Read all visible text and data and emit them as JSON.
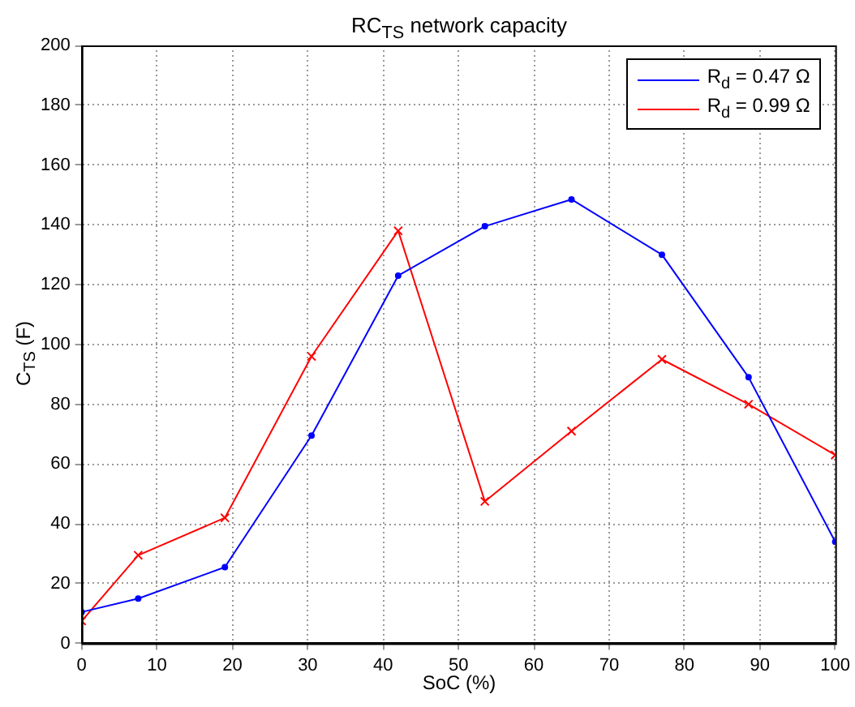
{
  "chart_data": {
    "type": "line",
    "title": "RC$_{TS}$ network capacity",
    "xlabel": "SoC (%)",
    "ylabel": "C$_{TS}$ (F)",
    "x": [
      0,
      7.5,
      19,
      30.5,
      42,
      53.5,
      65,
      77,
      88.5,
      100
    ],
    "xlim": [
      0,
      100
    ],
    "xticks": [
      0,
      10,
      20,
      30,
      40,
      50,
      60,
      70,
      80,
      90,
      100
    ],
    "ylim": [
      0,
      200
    ],
    "yticks": [
      0,
      20,
      40,
      60,
      80,
      100,
      120,
      140,
      160,
      180,
      200
    ],
    "grid": true,
    "legend": "top right",
    "line_style": "solid",
    "series": [
      {
        "name": "R$_{d}$ = 0.47 Ω",
        "color": "#0000ff",
        "marker": "circle",
        "values": [
          10.5,
          15,
          25.5,
          69.5,
          123,
          139.5,
          148.5,
          130,
          89,
          34
        ]
      },
      {
        "name": "R$_{d}$ = 0.99 Ω",
        "color": "#ff0000",
        "marker": "cross",
        "values": [
          7.5,
          29.5,
          42,
          96,
          138,
          47.5,
          71,
          95,
          80,
          63
        ]
      }
    ]
  }
}
